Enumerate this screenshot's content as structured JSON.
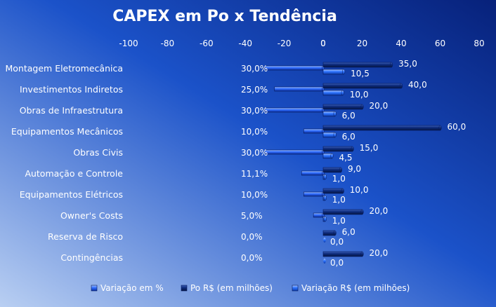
{
  "chart_data": {
    "type": "bar",
    "title": "CAPEX em Po x Tendência",
    "categories": [
      "Montagem Eletromecânica",
      "Investimentos Indiretos",
      "Obras de Infraestrutura",
      "Equipamentos Mecânicos",
      "Obras Civis",
      "Automação e Controle",
      "Equipamentos Elétricos",
      "Owner's Costs",
      "Reserva de Risco",
      "Contingências"
    ],
    "left_panel": {
      "xlim": [
        -100,
        0
      ],
      "ticks": [
        "-100",
        "-80",
        "-60",
        "-40",
        "-20",
        "0"
      ],
      "series": [
        {
          "name": "Variação em %",
          "values": [
            -30,
            -25,
            -30,
            -10,
            -30,
            -11.1,
            -10,
            -5,
            0,
            0
          ],
          "labels": [
            "30,0%",
            "25,0%",
            "30,0%",
            "10,0%",
            "30,0%",
            "11,1%",
            "10,0%",
            "5,0%",
            "0,0%",
            "0,0%"
          ]
        }
      ]
    },
    "right_panel": {
      "xlim": [
        0,
        80
      ],
      "ticks": [
        "0",
        "20",
        "40",
        "60",
        "80"
      ],
      "series": [
        {
          "name": "Po R$ (em milhões)",
          "values": [
            35,
            40,
            20,
            60,
            15,
            9,
            10,
            20,
            6,
            20
          ],
          "labels": [
            "35,0",
            "40,0",
            "20,0",
            "60,0",
            "15,0",
            "9,0",
            "10,0",
            "20,0",
            "6,0",
            "20,0"
          ]
        },
        {
          "name": "Variação R$ (em milhões)",
          "values": [
            10.5,
            10,
            6,
            6,
            4.5,
            1,
            1,
            1,
            0,
            0
          ],
          "labels": [
            "10,5",
            "10,0",
            "6,0",
            "6,0",
            "4,5",
            "1,0",
            "1,0",
            "1,0",
            "0,0",
            "0,0"
          ]
        }
      ]
    },
    "legend": {
      "placement": "bottom",
      "items": [
        "Variação em %",
        "Po R$ (em milhões)",
        "Variação R$ (em milhões)"
      ]
    },
    "grid": false,
    "colors": {
      "background_dark": "#0a2a8c",
      "background_light": "#aec6ee",
      "pct_bar": "#2f6cff",
      "po_bar": "#0d2a7a",
      "var_bar": "#2e74ff"
    }
  }
}
